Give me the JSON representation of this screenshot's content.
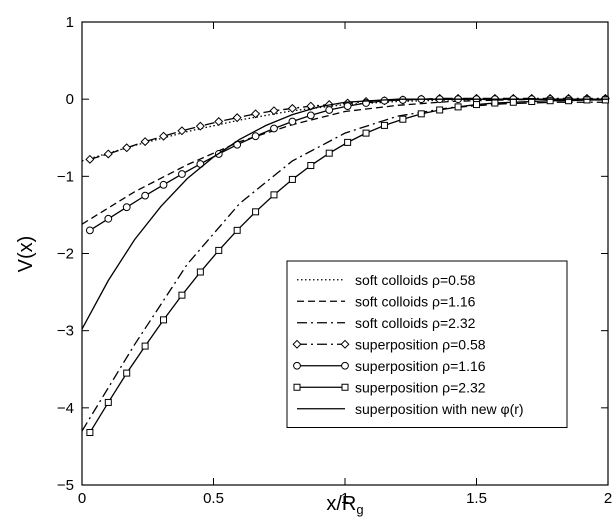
{
  "chart_data": {
    "type": "line",
    "xlabel": "x/R",
    "xlabel_sub": "g",
    "ylabel": "V(x)",
    "xlim": [
      0,
      2
    ],
    "ylim": [
      -5,
      1
    ],
    "xticks": [
      0,
      0.5,
      1,
      1.5,
      2
    ],
    "xtick_labels": [
      "0",
      "0.5",
      "1",
      "1.5",
      "2"
    ],
    "yticks": [
      -5,
      -4,
      -3,
      -2,
      -1,
      0,
      1
    ],
    "ytick_labels": [
      "−5",
      "−4",
      "−3",
      "−2",
      "−1",
      "0",
      "1"
    ],
    "grid": false,
    "legend_position": "lower-right",
    "series": [
      {
        "name": "soft colloids ρ=0.58",
        "style": "dotted",
        "marker": "none",
        "x": [
          0,
          0.2,
          0.4,
          0.6,
          0.8,
          1.0,
          1.2,
          1.4,
          1.6,
          1.8,
          2.0
        ],
        "y": [
          -0.8,
          -0.6,
          -0.42,
          -0.27,
          -0.15,
          -0.07,
          -0.03,
          -0.01,
          0,
          0,
          0
        ]
      },
      {
        "name": "soft colloids ρ=1.16",
        "style": "dashed",
        "marker": "none",
        "x": [
          0,
          0.2,
          0.4,
          0.6,
          0.8,
          1.0,
          1.2,
          1.4,
          1.6,
          1.8,
          2.0
        ],
        "y": [
          -1.62,
          -1.2,
          -0.85,
          -0.55,
          -0.33,
          -0.16,
          -0.08,
          -0.03,
          -0.01,
          0,
          0
        ]
      },
      {
        "name": "soft colloids ρ=2.32",
        "style": "dashdot",
        "marker": "none",
        "x": [
          0,
          0.2,
          0.4,
          0.6,
          0.8,
          1.0,
          1.2,
          1.4,
          1.6,
          1.8,
          2.0
        ],
        "y": [
          -4.3,
          -3.18,
          -2.14,
          -1.35,
          -0.8,
          -0.44,
          -0.22,
          -0.11,
          -0.06,
          -0.04,
          -0.04
        ]
      },
      {
        "name": "superposition ρ=0.58",
        "style": "dashdot",
        "marker": "diamond",
        "x": [
          0.03,
          0.1,
          0.17,
          0.24,
          0.31,
          0.38,
          0.45,
          0.52,
          0.59,
          0.66,
          0.73,
          0.8,
          0.87,
          0.94,
          1.01,
          1.08,
          1.15,
          1.22,
          1.29,
          1.36,
          1.43,
          1.5,
          1.57,
          1.64,
          1.71,
          1.78,
          1.85,
          1.92,
          1.99
        ],
        "y": [
          -0.78,
          -0.71,
          -0.63,
          -0.55,
          -0.48,
          -0.41,
          -0.35,
          -0.29,
          -0.24,
          -0.19,
          -0.15,
          -0.12,
          -0.09,
          -0.07,
          -0.05,
          -0.03,
          -0.02,
          -0.01,
          0,
          0.01,
          0.01,
          0.01,
          0.01,
          0.01,
          0.01,
          0.01,
          0.01,
          0.01,
          0.01
        ]
      },
      {
        "name": "superposition ρ=1.16",
        "style": "solid",
        "marker": "circle",
        "x": [
          0.03,
          0.1,
          0.17,
          0.24,
          0.31,
          0.38,
          0.45,
          0.52,
          0.59,
          0.66,
          0.73,
          0.8,
          0.87,
          0.94,
          1.01,
          1.08,
          1.15,
          1.22,
          1.29,
          1.36,
          1.43,
          1.5,
          1.57,
          1.64,
          1.71,
          1.78,
          1.85,
          1.92,
          1.99
        ],
        "y": [
          -1.7,
          -1.55,
          -1.4,
          -1.25,
          -1.11,
          -0.97,
          -0.84,
          -0.71,
          -0.59,
          -0.48,
          -0.38,
          -0.29,
          -0.21,
          -0.14,
          -0.09,
          -0.05,
          -0.02,
          -0.01,
          0,
          0,
          0,
          0,
          0,
          0,
          0,
          0,
          0,
          0,
          0
        ]
      },
      {
        "name": "superposition ρ=2.32",
        "style": "solid",
        "marker": "square",
        "x": [
          0.03,
          0.1,
          0.17,
          0.24,
          0.31,
          0.38,
          0.45,
          0.52,
          0.59,
          0.66,
          0.73,
          0.8,
          0.87,
          0.94,
          1.01,
          1.08,
          1.15,
          1.22,
          1.29,
          1.36,
          1.43,
          1.5,
          1.57,
          1.64,
          1.71,
          1.78,
          1.85,
          1.92,
          1.99
        ],
        "y": [
          -4.32,
          -3.93,
          -3.55,
          -3.2,
          -2.86,
          -2.54,
          -2.24,
          -1.96,
          -1.7,
          -1.46,
          -1.24,
          -1.04,
          -0.86,
          -0.7,
          -0.56,
          -0.44,
          -0.34,
          -0.26,
          -0.19,
          -0.14,
          -0.1,
          -0.07,
          -0.05,
          -0.04,
          -0.03,
          -0.02,
          -0.02,
          -0.01,
          -0.01
        ]
      },
      {
        "name": "superposition with new φ(r)",
        "style": "solid",
        "marker": "none",
        "x": [
          0,
          0.1,
          0.2,
          0.3,
          0.4,
          0.5,
          0.6,
          0.7,
          0.8,
          0.9,
          1.0,
          1.2,
          1.4,
          1.6,
          1.8,
          2.0
        ],
        "y": [
          -2.98,
          -2.35,
          -1.82,
          -1.39,
          -1.03,
          -0.75,
          -0.52,
          -0.34,
          -0.2,
          -0.1,
          -0.04,
          0,
          0,
          0,
          0,
          0
        ]
      }
    ]
  }
}
